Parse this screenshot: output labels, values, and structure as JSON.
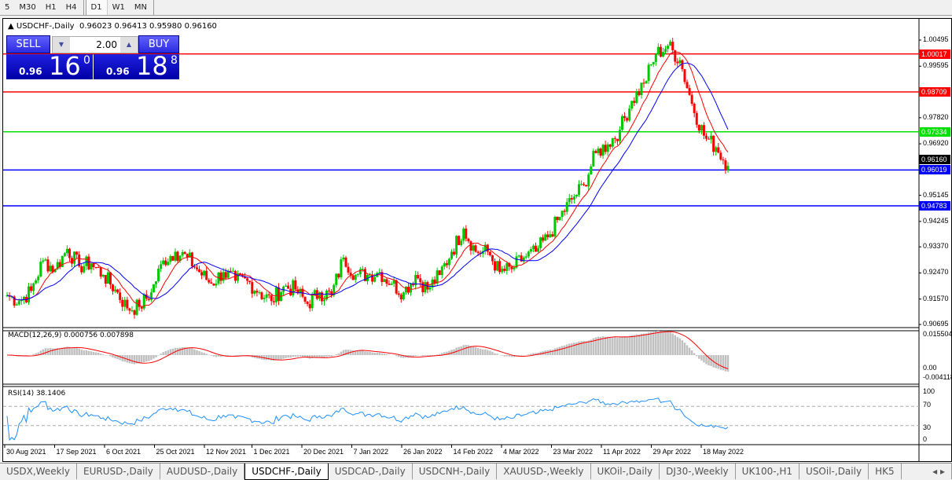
{
  "timeframes": [
    "5",
    "M30",
    "H1",
    "H4",
    "D1",
    "W1",
    "MN"
  ],
  "active_timeframe": "D1",
  "chart": {
    "header": "USDCHF-,Daily",
    "ohlc": "0.96023 0.96413 0.95980 0.96160",
    "trade_panel": {
      "sell_label": "SELL",
      "buy_label": "BUY",
      "lot": "2.00",
      "sell_prefix": "0.96",
      "sell_big": "16",
      "sell_sup": "0",
      "buy_prefix": "0.96",
      "buy_big": "18",
      "buy_sup": "8"
    },
    "price_axis": [
      "1.00495",
      "0.99595",
      "0.97820",
      "0.96920",
      "0.95145",
      "0.94245",
      "0.93370",
      "0.92470",
      "0.91570",
      "0.90695"
    ],
    "current_price": "0.96160",
    "levels": [
      {
        "value": "1.00017",
        "color": "#ff0000"
      },
      {
        "value": "0.98709",
        "color": "#ff0000"
      },
      {
        "value": "0.97334",
        "color": "#00e000"
      },
      {
        "value": "0.96019",
        "color": "#0000ff"
      },
      {
        "value": "0.94783",
        "color": "#0000ff"
      }
    ],
    "closes": [
      0.917,
      0.915,
      0.9185,
      0.929,
      0.926,
      0.933,
      0.927,
      0.928,
      0.924,
      0.919,
      0.9125,
      0.913,
      0.918,
      0.929,
      0.932,
      0.93,
      0.925,
      0.921,
      0.925,
      0.922,
      0.922,
      0.918,
      0.915,
      0.92,
      0.919,
      0.914,
      0.918,
      0.917,
      0.93,
      0.924,
      0.924,
      0.925,
      0.921,
      0.918,
      0.924,
      0.919,
      0.924,
      0.932,
      0.94,
      0.932,
      0.932,
      0.925,
      0.926,
      0.93,
      0.932,
      0.937,
      0.944,
      0.95,
      0.955,
      0.966,
      0.969,
      0.974,
      0.984,
      0.99,
      1.0,
      1.003,
      0.998,
      0.983,
      0.972,
      0.968,
      0.9616
    ],
    "colors": {
      "bull": "#00c800",
      "bear": "#ff0000",
      "ma_fast": "#ff0000",
      "ma_slow": "#0000ff",
      "rsi": "#1e90ff",
      "macd_hist": "#c0c0c0"
    },
    "macd": {
      "label": "MACD(12,26,9) 0.000756 0.007898",
      "axis": [
        "0.015504",
        "0.00",
        "-0.004118"
      ]
    },
    "rsi": {
      "label": "RSI(14) 38.1406",
      "axis": [
        "100",
        "70",
        "30",
        "0"
      ]
    },
    "time_axis": [
      "30 Aug 2021",
      "17 Sep 2021",
      "6 Oct 2021",
      "25 Oct 2021",
      "12 Nov 2021",
      "1 Dec 2021",
      "20 Dec 2021",
      "7 Jan 2022",
      "26 Jan 2022",
      "14 Feb 2022",
      "4 Mar 2022",
      "23 Mar 2022",
      "11 Apr 2022",
      "29 Apr 2022",
      "18 May 2022"
    ]
  },
  "tabs": [
    "USDX,Weekly",
    "EURUSD-,Daily",
    "AUDUSD-,Daily",
    "USDCHF-,Daily",
    "USDCAD-,Daily",
    "USDCNH-,Daily",
    "XAUUSD-,Weekly",
    "UKOil-,Daily",
    "DJ30-,Weekly",
    "UK100-,H1",
    "USOil-,Daily",
    "HK5"
  ],
  "active_tab": "USDCHF-,Daily"
}
